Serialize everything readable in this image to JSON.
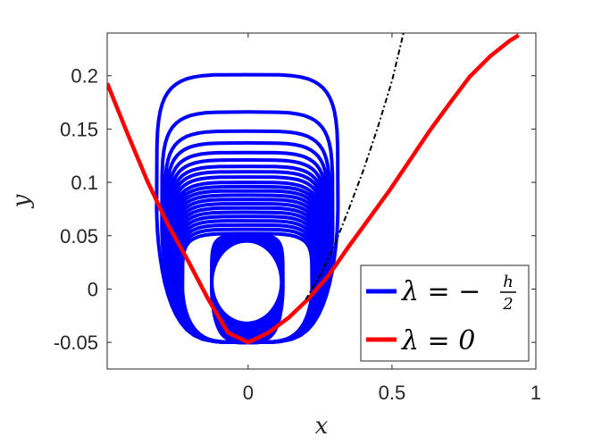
{
  "chart_data": {
    "type": "line",
    "xlabel": "x",
    "ylabel": "y",
    "xlim": [
      -0.49,
      1.0
    ],
    "ylim": [
      -0.075,
      0.24
    ],
    "xticks": [
      0,
      0.5,
      1
    ],
    "xtick_labels": [
      "0",
      "0.5",
      "1"
    ],
    "yticks": [
      -0.05,
      0,
      0.05,
      0.1,
      0.15,
      0.2
    ],
    "ytick_labels": [
      "-0.05",
      "0",
      "0.05",
      "0.1",
      "0.15",
      "0.2"
    ],
    "grid": false,
    "legend_position": "bottom-right",
    "colors": {
      "blue": "#0000ff",
      "red": "#ff0000",
      "black": "#000000"
    },
    "legend": [
      {
        "label_prefix": "λ = −",
        "fraction_num": "h",
        "fraction_den": "2",
        "color": "#0000ff"
      },
      {
        "label": "λ = 0",
        "color": "#ff0000"
      }
    ],
    "series": [
      {
        "name": "λ = 0",
        "color": "#ff0000",
        "x": [
          -0.49,
          -0.42,
          -0.35,
          -0.28,
          -0.21,
          -0.14,
          -0.07,
          0.0,
          0.07,
          0.14,
          0.21,
          0.28,
          0.35,
          0.42,
          0.49,
          0.56,
          0.63,
          0.7,
          0.77,
          0.84,
          0.91,
          0.94
        ],
        "y": [
          0.193,
          0.146,
          0.101,
          0.061,
          0.027,
          -0.009,
          -0.041,
          -0.05,
          -0.041,
          -0.027,
          -0.009,
          0.013,
          0.04,
          0.066,
          0.092,
          0.12,
          0.148,
          0.174,
          0.199,
          0.218,
          0.233,
          0.238
        ]
      },
      {
        "name": "",
        "color": "#000000",
        "style": "dash-dot",
        "x": [
          0.2,
          0.25,
          0.3,
          0.35,
          0.4,
          0.45,
          0.5,
          0.54
        ],
        "y": [
          -0.01,
          0.013,
          0.041,
          0.075,
          0.111,
          0.151,
          0.195,
          0.24
        ]
      }
    ],
    "orbits": {
      "color": "#0000ff",
      "top_y": [
        0.201,
        0.166,
        0.148,
        0.137,
        0.128,
        0.121,
        0.115,
        0.11,
        0.105,
        0.1,
        0.096,
        0.092,
        0.088,
        0.084,
        0.08,
        0.076,
        0.072,
        0.068,
        0.064,
        0.06,
        0.056,
        0.052
      ],
      "inner_hole": {
        "x_range": [
          -0.12,
          0.11
        ],
        "y_range": [
          -0.028,
          0.046
        ]
      }
    }
  }
}
